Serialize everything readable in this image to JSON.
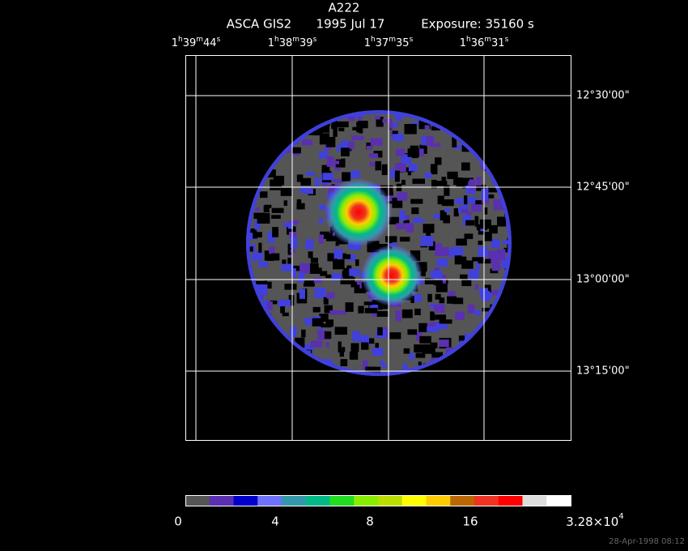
{
  "header": {
    "title": "A222",
    "instrument": "ASCA GIS2",
    "date": "1995 Jul 17",
    "exposure": "Exposure: 35160 s"
  },
  "ra_labels": [
    [
      "1",
      "h",
      "39",
      "m",
      "44",
      "s"
    ],
    [
      "1",
      "h",
      "38",
      "m",
      "39",
      "s"
    ],
    [
      "1",
      "h",
      "37",
      "m",
      "35",
      "s"
    ],
    [
      "1",
      "h",
      "36",
      "m",
      "31",
      "s"
    ]
  ],
  "dec_labels": [
    "12°30'00\"",
    "12°45'00\"",
    "13°00'00\"",
    "13°15'00\""
  ],
  "colorbar": {
    "labels": [
      "0",
      "4",
      "8",
      "16"
    ],
    "max_label": {
      "mantissa": "3.28×10",
      "exponent": "4"
    },
    "colors": [
      "#555555",
      "#5a30b0",
      "#0000cc",
      "#7070ff",
      "#3399aa",
      "#00bb88",
      "#22dd22",
      "#88ee00",
      "#bbdd00",
      "#ffff00",
      "#ffcc00",
      "#bb6600",
      "#ee3322",
      "#ff0000",
      "#dddddd",
      "#ffffff"
    ]
  },
  "timestamp": "28-Apr-1998 08:12"
}
